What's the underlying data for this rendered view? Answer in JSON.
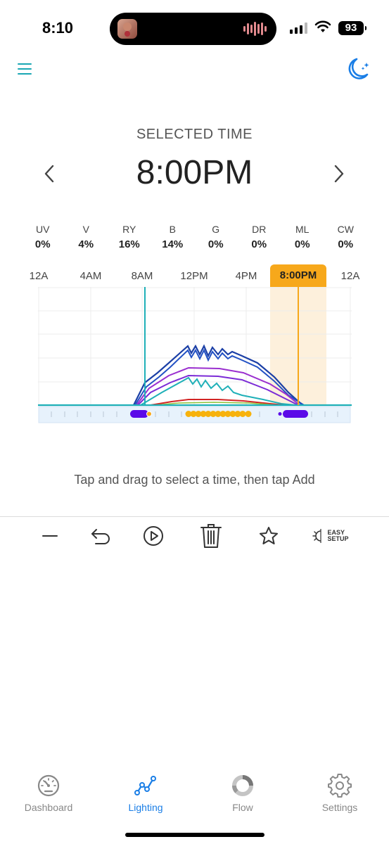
{
  "status_bar": {
    "time": "8:10",
    "battery": "93"
  },
  "header": {
    "menu_icon": "menu-icon",
    "mode_icon": "moon-stars-icon",
    "accent": "#1a7ee6",
    "teal": "#1aa7b4"
  },
  "selected": {
    "label": "SELECTED TIME",
    "time": "8:00PM"
  },
  "channels": [
    {
      "name": "UV",
      "value": "0%"
    },
    {
      "name": "V",
      "value": "4%"
    },
    {
      "name": "RY",
      "value": "16%"
    },
    {
      "name": "B",
      "value": "14%"
    },
    {
      "name": "G",
      "value": "0%"
    },
    {
      "name": "DR",
      "value": "0%"
    },
    {
      "name": "ML",
      "value": "0%"
    },
    {
      "name": "CW",
      "value": "0%"
    }
  ],
  "time_axis": {
    "ticks": [
      "12A",
      "4AM",
      "8AM",
      "12PM",
      "4PM",
      "8:00PM",
      "12A"
    ],
    "selected_tick": "8:00PM",
    "selected_color": "#f7a81b"
  },
  "hint": "Tap and drag to select a time, then tap Add",
  "toolbar": {
    "icons": [
      "minus-icon",
      "undo-icon",
      "play-icon",
      "trash-icon",
      "star-icon",
      "easy-setup-icon"
    ],
    "easy_line1": "EASY",
    "easy_line2": "SETUP"
  },
  "nav": {
    "items": [
      {
        "label": "Dashboard",
        "icon": "gauge-icon"
      },
      {
        "label": "Lighting",
        "icon": "chart-line-icon"
      },
      {
        "label": "Flow",
        "icon": "flow-ring-icon"
      },
      {
        "label": "Settings",
        "icon": "gear-icon"
      }
    ],
    "active": "Lighting"
  }
}
